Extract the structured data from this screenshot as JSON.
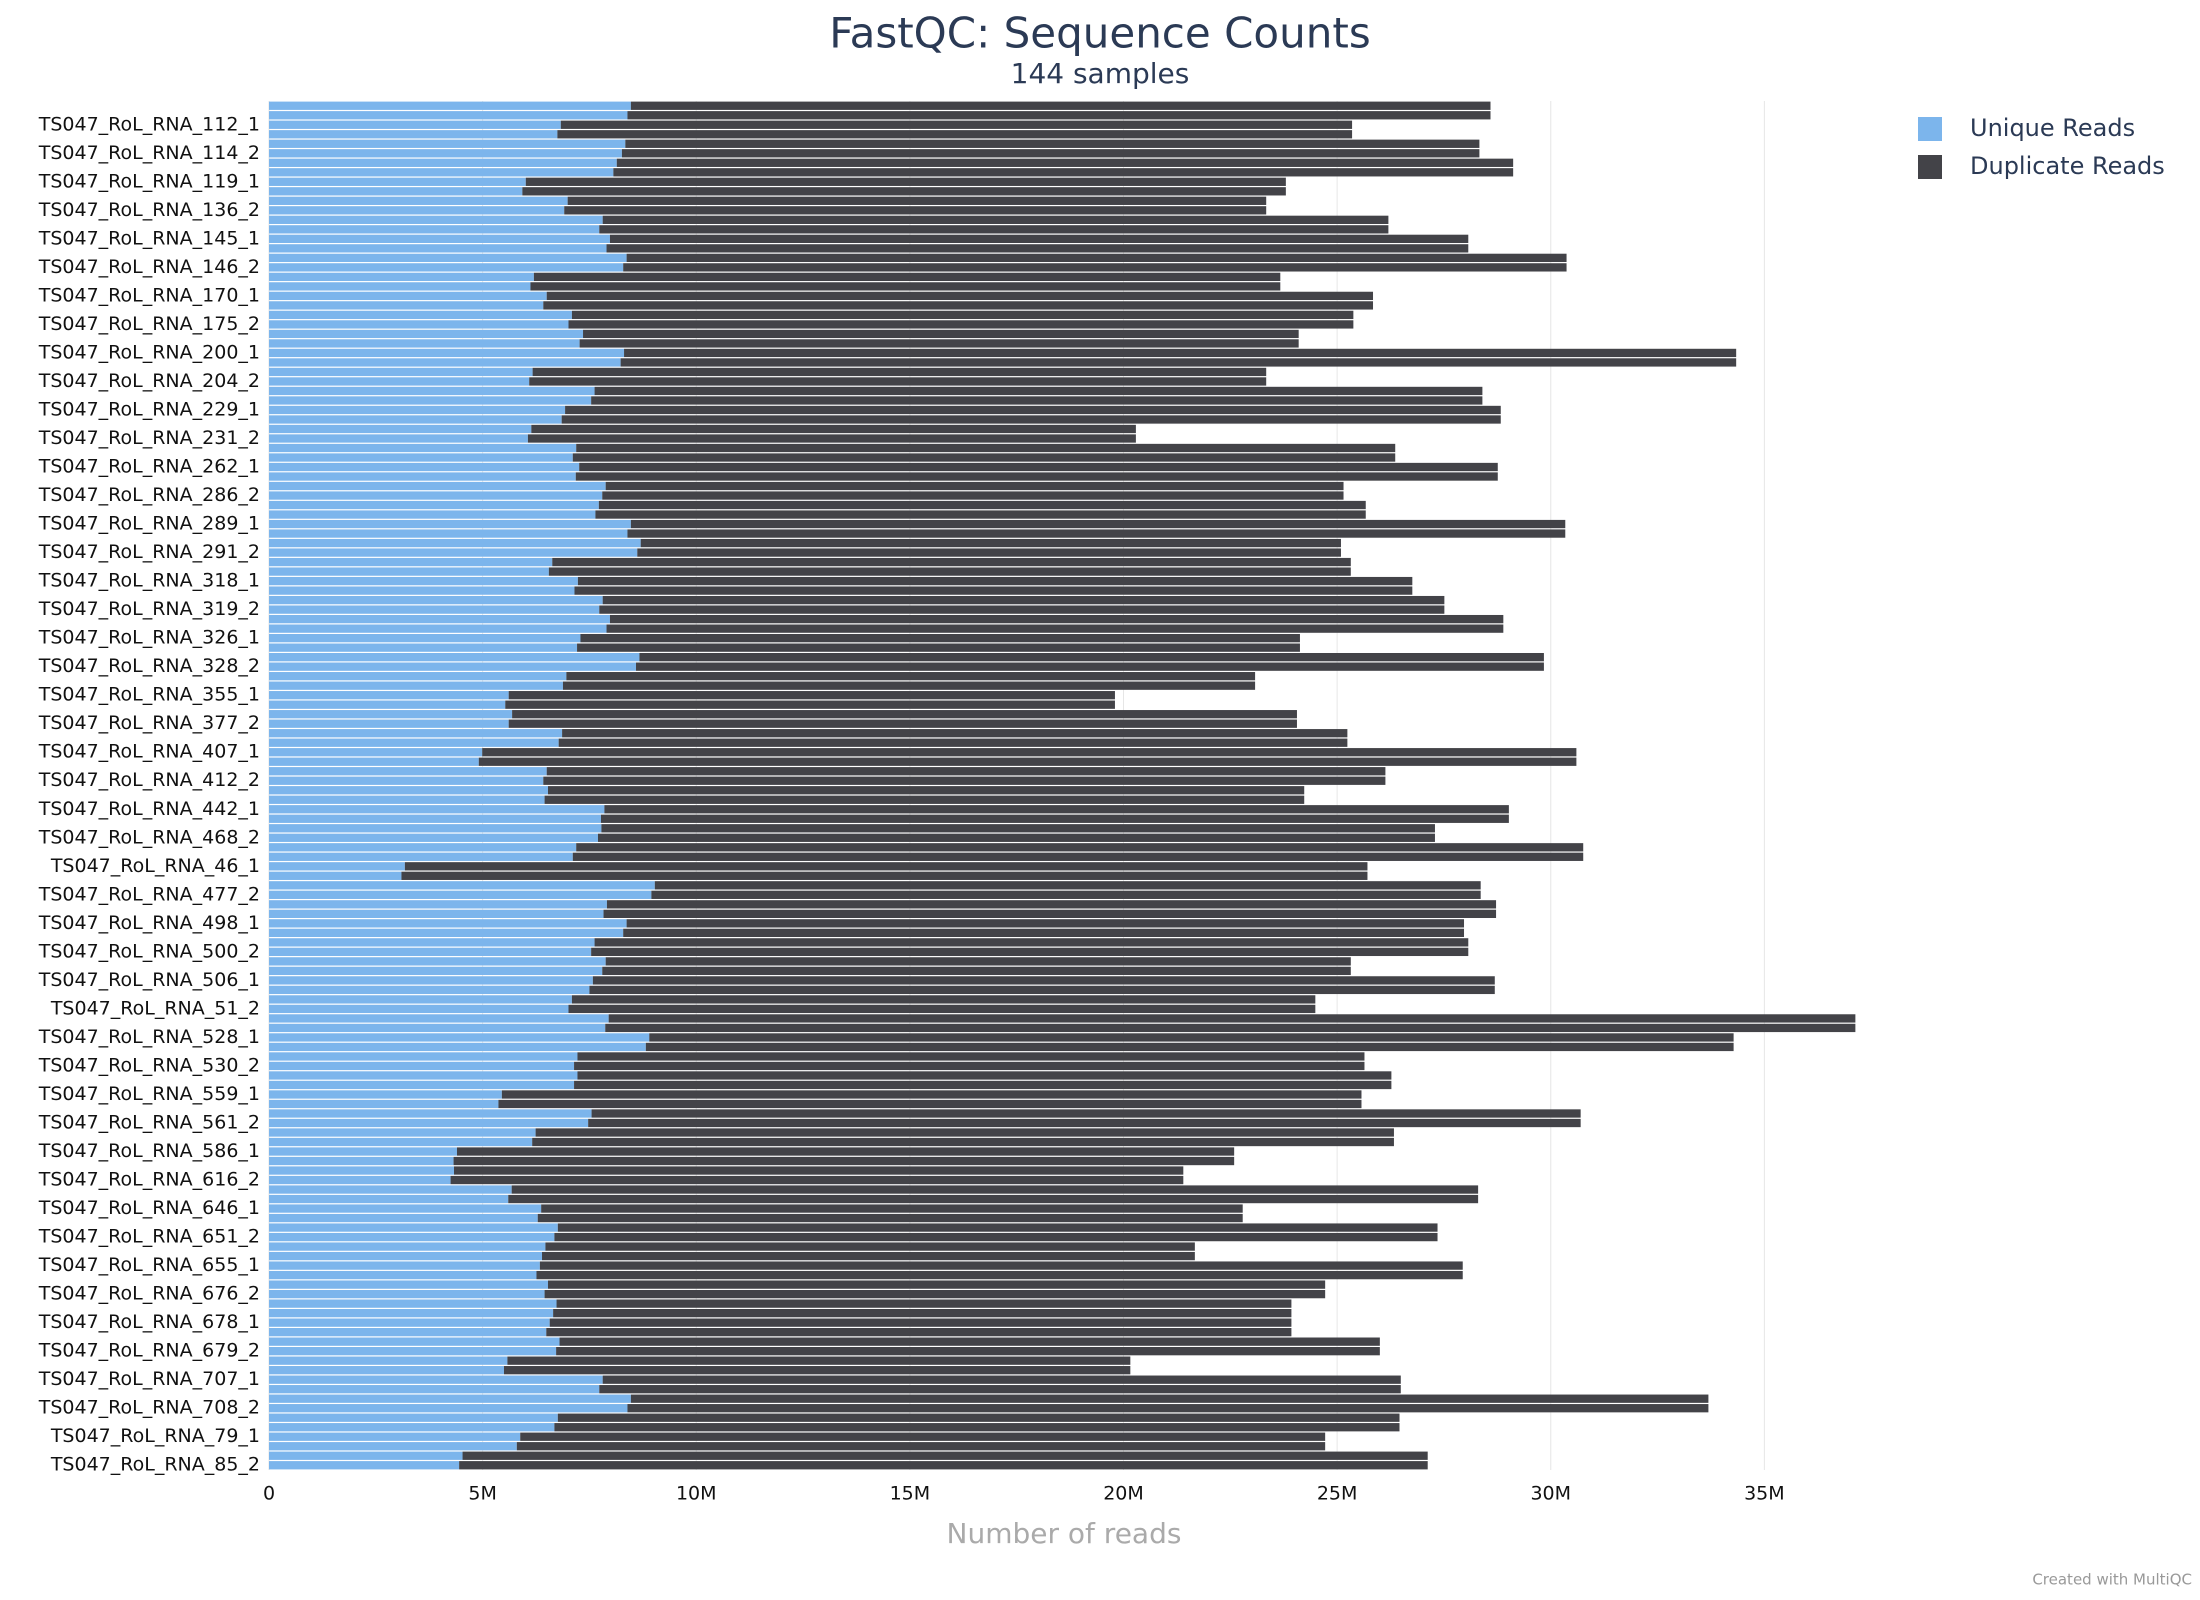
{
  "chart_data": {
    "type": "stacked_bar_horizontal",
    "title": "FastQC: Sequence Counts",
    "subtitle": "144 samples",
    "x_label": "Number of reads",
    "credit": "Created with MultiQC",
    "legend": "top-right",
    "grid": true,
    "xlim": [
      0,
      40000000
    ],
    "xticks": [
      0,
      {
        "value": 5000000,
        "label": "5M"
      },
      {
        "value": 10000000,
        "label": "10M"
      },
      {
        "value": 15000000,
        "label": "15M"
      },
      {
        "value": 20000000,
        "label": "20M"
      },
      {
        "value": 25000000,
        "label": "25M"
      },
      {
        "value": 30000000,
        "label": "30M"
      },
      {
        "value": 35000000,
        "label": "35M"
      }
    ],
    "categories": [
      null,
      null,
      "TS047_RoL_RNA_112_1",
      null,
      null,
      "TS047_RoL_RNA_114_2",
      null,
      null,
      "TS047_RoL_RNA_119_1",
      null,
      null,
      "TS047_RoL_RNA_136_2",
      null,
      null,
      "TS047_RoL_RNA_145_1",
      null,
      null,
      "TS047_RoL_RNA_146_2",
      null,
      null,
      "TS047_RoL_RNA_170_1",
      null,
      null,
      "TS047_RoL_RNA_175_2",
      null,
      null,
      "TS047_RoL_RNA_200_1",
      null,
      null,
      "TS047_RoL_RNA_204_2",
      null,
      null,
      "TS047_RoL_RNA_229_1",
      null,
      null,
      "TS047_RoL_RNA_231_2",
      null,
      null,
      "TS047_RoL_RNA_262_1",
      null,
      null,
      "TS047_RoL_RNA_286_2",
      null,
      null,
      "TS047_RoL_RNA_289_1",
      null,
      null,
      "TS047_RoL_RNA_291_2",
      null,
      null,
      "TS047_RoL_RNA_318_1",
      null,
      null,
      "TS047_RoL_RNA_319_2",
      null,
      null,
      "TS047_RoL_RNA_326_1",
      null,
      null,
      "TS047_RoL_RNA_328_2",
      null,
      null,
      "TS047_RoL_RNA_355_1",
      null,
      null,
      "TS047_RoL_RNA_377_2",
      null,
      null,
      "TS047_RoL_RNA_407_1",
      null,
      null,
      "TS047_RoL_RNA_412_2",
      null,
      null,
      "TS047_RoL_RNA_442_1",
      null,
      null,
      "TS047_RoL_RNA_468_2",
      null,
      null,
      "TS047_RoL_RNA_46_1",
      null,
      null,
      "TS047_RoL_RNA_477_2",
      null,
      null,
      "TS047_RoL_RNA_498_1",
      null,
      null,
      "TS047_RoL_RNA_500_2",
      null,
      null,
      "TS047_RoL_RNA_506_1",
      null,
      null,
      "TS047_RoL_RNA_51_2",
      null,
      null,
      "TS047_RoL_RNA_528_1",
      null,
      null,
      "TS047_RoL_RNA_530_2",
      null,
      null,
      "TS047_RoL_RNA_559_1",
      null,
      null,
      "TS047_RoL_RNA_561_2",
      null,
      null,
      "TS047_RoL_RNA_586_1",
      null,
      null,
      "TS047_RoL_RNA_616_2",
      null,
      null,
      "TS047_RoL_RNA_646_1",
      null,
      null,
      "TS047_RoL_RNA_651_2",
      null,
      null,
      "TS047_RoL_RNA_655_1",
      null,
      null,
      "TS047_RoL_RNA_676_2",
      null,
      null,
      "TS047_RoL_RNA_678_1",
      null,
      null,
      "TS047_RoL_RNA_679_2",
      null,
      null,
      "TS047_RoL_RNA_707_1",
      null,
      null,
      "TS047_RoL_RNA_708_2",
      null,
      null,
      "TS047_RoL_RNA_79_1",
      null,
      null,
      "TS047_RoL_RNA_85_2"
    ],
    "series": [
      {
        "name": "Unique Reads",
        "color": "#7cb5ec",
        "values": [
          8470000,
          8390000,
          6830000,
          6750000,
          8340000,
          8260000,
          8140000,
          8060000,
          6010000,
          5930000,
          6990000,
          6910000,
          7810000,
          7730000,
          7980000,
          7900000,
          8370000,
          8290000,
          6200000,
          6120000,
          6500000,
          6420000,
          7090000,
          7010000,
          7350000,
          7270000,
          8310000,
          8230000,
          6170000,
          6090000,
          7620000,
          7540000,
          6930000,
          6850000,
          6140000,
          6060000,
          7190000,
          7110000,
          7260000,
          7180000,
          7880000,
          7800000,
          7720000,
          7640000,
          8470000,
          8390000,
          8700000,
          8620000,
          6630000,
          6550000,
          7230000,
          7150000,
          7810000,
          7730000,
          7980000,
          7900000,
          7290000,
          7210000,
          8670000,
          8590000,
          6960000,
          6880000,
          5610000,
          5530000,
          5690000,
          5610000,
          6860000,
          6780000,
          4990000,
          4910000,
          6500000,
          6420000,
          6530000,
          6450000,
          7850000,
          7770000,
          7780000,
          7700000,
          7190000,
          7110000,
          3180000,
          3100000,
          9030000,
          8950000,
          7910000,
          7830000,
          8370000,
          8290000,
          7620000,
          7540000,
          7880000,
          7800000,
          7580000,
          7500000,
          7090000,
          7010000,
          7950000,
          7870000,
          8900000,
          8820000,
          7220000,
          7140000,
          7220000,
          7140000,
          5450000,
          5370000,
          7550000,
          7470000,
          6240000,
          6160000,
          4400000,
          4320000,
          4330000,
          4250000,
          5680000,
          5600000,
          6370000,
          6290000,
          6760000,
          6680000,
          6470000,
          6390000,
          6340000,
          6260000,
          6530000,
          6450000,
          6730000,
          6650000,
          6570000,
          6490000,
          6800000,
          6720000,
          5580000,
          5500000,
          7810000,
          7730000,
          8470000,
          8390000,
          6760000,
          6680000,
          5880000,
          5800000,
          4530000,
          4450000
        ]
      },
      {
        "name": "Duplicate Reads",
        "color": "#434348",
        "values": [
          20120000,
          20200000,
          18520000,
          18600000,
          19990000,
          20070000,
          20980000,
          21060000,
          17790000,
          17870000,
          16350000,
          16430000,
          18390000,
          18470000,
          20090000,
          20170000,
          22000000,
          22080000,
          17470000,
          17550000,
          19340000,
          19420000,
          18290000,
          18370000,
          16750000,
          16830000,
          26030000,
          26110000,
          17170000,
          17250000,
          20780000,
          20860000,
          21900000,
          21980000,
          14150000,
          14230000,
          19170000,
          19250000,
          21500000,
          21580000,
          17270000,
          17350000,
          17950000,
          18030000,
          21870000,
          21950000,
          16390000,
          16470000,
          18690000,
          18770000,
          19530000,
          19610000,
          19700000,
          19780000,
          20910000,
          20990000,
          16840000,
          16920000,
          21170000,
          21250000,
          16120000,
          16200000,
          14190000,
          14270000,
          18370000,
          18450000,
          18380000,
          18460000,
          25610000,
          25690000,
          19630000,
          19710000,
          17700000,
          17780000,
          21170000,
          21250000,
          19510000,
          19590000,
          23570000,
          23650000,
          22530000,
          22610000,
          19330000,
          19410000,
          20810000,
          20890000,
          19600000,
          19680000,
          20450000,
          20530000,
          17440000,
          17520000,
          21110000,
          21190000,
          17400000,
          17480000,
          29180000,
          29260000,
          25380000,
          25460000,
          18420000,
          18500000,
          19050000,
          19130000,
          20120000,
          20200000,
          23150000,
          23230000,
          20090000,
          20170000,
          18190000,
          18270000,
          17070000,
          17150000,
          22620000,
          22700000,
          16420000,
          16500000,
          20590000,
          20670000,
          15200000,
          15280000,
          21600000,
          21680000,
          18190000,
          18270000,
          17200000,
          17280000,
          17360000,
          17440000,
          19200000,
          19280000,
          14580000,
          14660000,
          18680000,
          18760000,
          25220000,
          25300000,
          19700000,
          19780000,
          18840000,
          18920000,
          22590000,
          22670000
        ]
      }
    ]
  }
}
